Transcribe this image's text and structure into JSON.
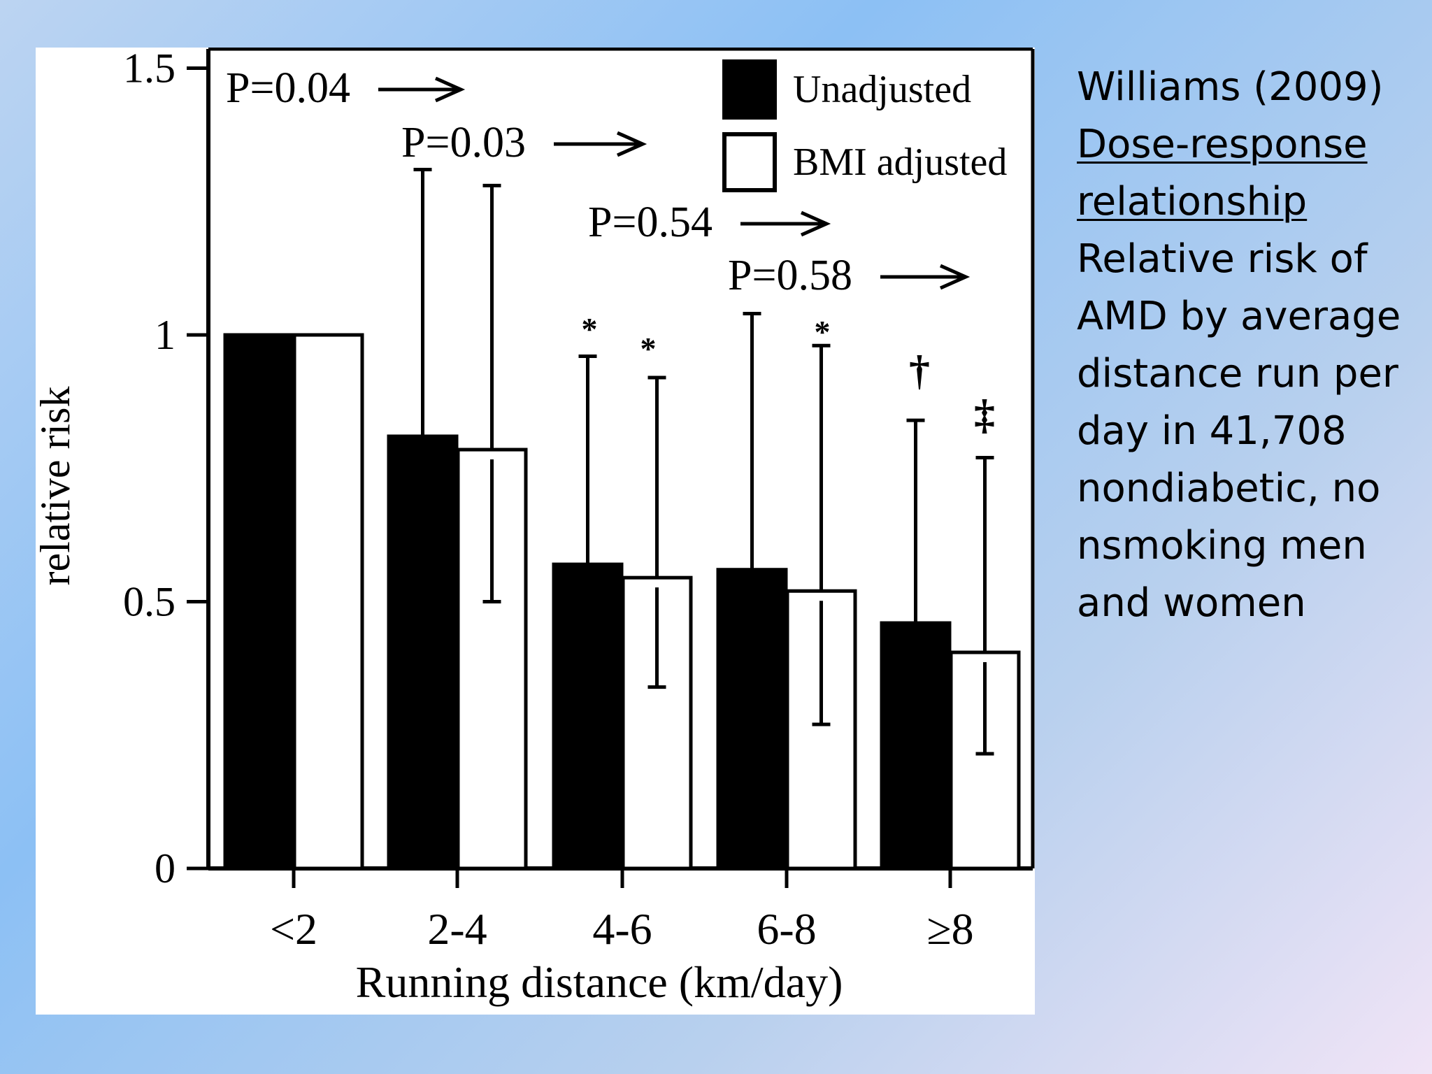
{
  "side_panel": {
    "citation": "Williams (2009)",
    "subtitle_lines": [
      "Dose-response",
      "relationship"
    ],
    "description_lines": [
      "Relative risk of",
      "AMD by average",
      "distance run per",
      "day in 41,708",
      "nondiabetic, no",
      "nsmoking men",
      "and women"
    ]
  },
  "chart_data": {
    "type": "bar",
    "xlabel": "Running distance (km/day)",
    "ylabel": "relative risk",
    "ylim": [
      0,
      1.5
    ],
    "yticks": [
      "0",
      "0.5",
      "1",
      "1.5"
    ],
    "ytick_values": [
      0,
      0.5,
      1,
      1.5
    ],
    "categories": [
      "<2",
      "2-4",
      "4-6",
      "6-8",
      "≥8"
    ],
    "legend": {
      "placement": "top-right"
    },
    "grid": false,
    "series": [
      {
        "name": "Unadjusted",
        "fill": "#000000",
        "values": [
          1.0,
          0.81,
          0.57,
          0.56,
          0.46
        ],
        "ci_low": [
          null,
          null,
          null,
          null,
          null
        ],
        "ci_high": [
          null,
          1.31,
          0.96,
          1.04,
          0.84
        ]
      },
      {
        "name": "BMI adjusted",
        "fill": "#ffffff",
        "values": [
          1.0,
          0.785,
          0.545,
          0.52,
          0.405
        ],
        "ci_low": [
          null,
          0.5,
          0.34,
          0.27,
          0.215
        ],
        "ci_high": [
          null,
          1.28,
          0.92,
          0.98,
          0.77
        ]
      }
    ],
    "markers": [
      {
        "category": "4-6",
        "series": "Unadjusted",
        "symbol": "*"
      },
      {
        "category": "4-6",
        "series": "BMI adjusted",
        "symbol": "*"
      },
      {
        "category": "6-8",
        "series": "BMI adjusted",
        "symbol": "*"
      },
      {
        "category": "≥8",
        "series": "Unadjusted",
        "symbol": "†"
      },
      {
        "category": "≥8",
        "series": "BMI adjusted",
        "symbol": "‡"
      }
    ],
    "annotations": [
      "P=0.04",
      "P=0.03",
      "P=0.54",
      "P=0.58"
    ]
  }
}
